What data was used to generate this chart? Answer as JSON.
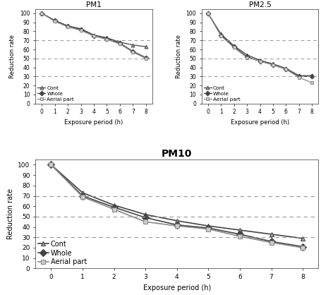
{
  "x": [
    0,
    1,
    2,
    3,
    4,
    5,
    6,
    7,
    8
  ],
  "PM1": {
    "Cont": [
      100,
      92,
      86,
      83,
      76,
      73,
      68,
      65,
      63
    ],
    "Whole": [
      100,
      92,
      86,
      82,
      75,
      72,
      67,
      58,
      51
    ],
    "Aerial part": [
      100,
      91,
      85,
      81,
      75,
      71,
      66,
      57,
      50
    ]
  },
  "PM2.5": {
    "Cont": [
      100,
      77,
      64,
      54,
      48,
      44,
      39,
      31,
      31
    ],
    "Whole": [
      100,
      76,
      63,
      52,
      47,
      43,
      38,
      30,
      30
    ],
    "Aerial part": [
      100,
      75,
      62,
      51,
      47,
      43,
      38,
      29,
      23
    ]
  },
  "PM10": {
    "Cont": [
      100,
      73,
      61,
      52,
      46,
      41,
      37,
      33,
      29
    ],
    "Whole": [
      100,
      70,
      59,
      49,
      42,
      39,
      33,
      26,
      21
    ],
    "Aerial part": [
      100,
      69,
      57,
      45,
      41,
      38,
      31,
      25,
      20
    ]
  },
  "hlines": [
    30,
    50,
    70
  ],
  "title_PM1": "PM1",
  "title_PM25": "PM2.5",
  "title_PM10": "PM10",
  "xlabel": "Exposure period (h)",
  "ylabel": "Reduction rate",
  "ylim": [
    0,
    105
  ],
  "yticks": [
    0,
    10,
    20,
    30,
    40,
    50,
    60,
    70,
    80,
    90,
    100
  ],
  "colors": {
    "Cont": "#444444",
    "Whole": "#444444",
    "Aerial part": "#888888"
  },
  "linestyles": {
    "Cont": "-",
    "Whole": "-",
    "Aerial part": "-"
  },
  "markers": {
    "Cont": "^",
    "Whole": "D",
    "Aerial part": "s"
  },
  "markerfacecolors": {
    "Cont": "#aaaaaa",
    "Whole": "#444444",
    "Aerial part": "#cccccc"
  },
  "linewidth": 1.0,
  "markersize": 4
}
